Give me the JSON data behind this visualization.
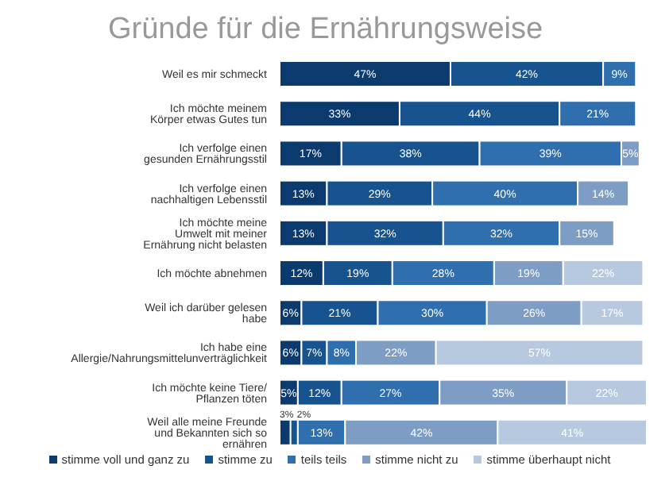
{
  "chart_data": {
    "type": "bar",
    "orientation": "horizontal",
    "stacked": true,
    "title": "Gründe für die Ernährungsweise",
    "categories": [
      "Weil es mir schmeckt",
      "Ich möchte meinem Körper etwas Gutes tun",
      "Ich verfolge einen gesunden Ernährungsstil",
      "Ich verfolge einen nachhaltigen Lebensstil",
      "Ich möchte meine Umwelt mit meiner Ernährung nicht belasten",
      "Ich möchte abnehmen",
      "Weil ich darüber gelesen habe",
      "Ich habe eine Allergie/Nahrungsmittelunverträglichkeit",
      "Ich möchte keine Tiere/ Pflanzen töten",
      "Weil alle meine Freunde und Bekannten sich so ernähren"
    ],
    "series": [
      {
        "name": "stimme voll und ganz zu",
        "color": "#0b3a6e",
        "values": [
          47,
          33,
          17,
          13,
          13,
          12,
          6,
          6,
          5,
          3
        ],
        "value_labels": [
          "47%",
          "33%",
          "17%",
          "13%",
          "13%",
          "12%",
          "6%",
          "6%",
          "5%",
          "3%"
        ]
      },
      {
        "name": "stimme zu",
        "color": "#17538f",
        "values": [
          42,
          44,
          38,
          29,
          32,
          19,
          21,
          7,
          12,
          2
        ],
        "value_labels": [
          "42%",
          "44%",
          "38%",
          "29%",
          "32%",
          "19%",
          "21%",
          "7%",
          "12%",
          "2%"
        ]
      },
      {
        "name": "teils teils",
        "color": "#2f6fae",
        "values": [
          9,
          21,
          39,
          40,
          32,
          28,
          30,
          8,
          27,
          13
        ],
        "value_labels": [
          "9%",
          "21%",
          "39%",
          "40%",
          "32%",
          "28%",
          "30%",
          "8%",
          "27%",
          "13%"
        ]
      },
      {
        "name": "stimme nicht zu",
        "color": "#7d9dc4",
        "values": [
          null,
          null,
          5,
          14,
          15,
          19,
          26,
          22,
          35,
          42
        ],
        "value_labels": [
          null,
          null,
          "5%",
          "14%",
          "15%",
          "19%",
          "26%",
          "22%",
          "35%",
          "42%"
        ]
      },
      {
        "name": "stimme überhaupt nicht",
        "color": "#b7c9df",
        "values": [
          null,
          null,
          null,
          null,
          null,
          22,
          17,
          57,
          22,
          41
        ],
        "value_labels": [
          null,
          null,
          null,
          null,
          null,
          "22%",
          "17%",
          "57%",
          "22%",
          "41%"
        ]
      }
    ],
    "xlim": [
      0,
      101
    ],
    "tick_labels": "y",
    "legend": "bottom"
  }
}
